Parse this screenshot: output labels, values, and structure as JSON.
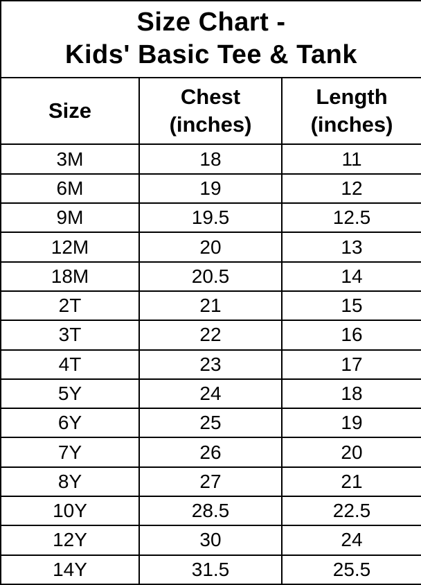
{
  "title": {
    "line1": "Size Chart -",
    "line2": "Kids' Basic Tee & Tank"
  },
  "colors": {
    "border": "#000000",
    "background": "#ffffff",
    "text": "#000000"
  },
  "chart_data": {
    "type": "table",
    "title": "Size Chart - Kids' Basic Tee & Tank",
    "columns": [
      "Size",
      "Chest (inches)",
      "Length (inches)"
    ],
    "column_headers": [
      {
        "label": "Size",
        "sub": ""
      },
      {
        "label": "Chest",
        "sub": "(inches)"
      },
      {
        "label": "Length",
        "sub": "(inches)"
      }
    ],
    "rows": [
      {
        "size": "3M",
        "chest": "18",
        "length": "11"
      },
      {
        "size": "6M",
        "chest": "19",
        "length": "12"
      },
      {
        "size": "9M",
        "chest": "19.5",
        "length": "12.5"
      },
      {
        "size": "12M",
        "chest": "20",
        "length": "13"
      },
      {
        "size": "18M",
        "chest": "20.5",
        "length": "14"
      },
      {
        "size": "2T",
        "chest": "21",
        "length": "15"
      },
      {
        "size": "3T",
        "chest": "22",
        "length": "16"
      },
      {
        "size": "4T",
        "chest": "23",
        "length": "17"
      },
      {
        "size": "5Y",
        "chest": "24",
        "length": "18"
      },
      {
        "size": "6Y",
        "chest": "25",
        "length": "19"
      },
      {
        "size": "7Y",
        "chest": "26",
        "length": "20"
      },
      {
        "size": "8Y",
        "chest": "27",
        "length": "21"
      },
      {
        "size": "10Y",
        "chest": "28.5",
        "length": "22.5"
      },
      {
        "size": "12Y",
        "chest": "30",
        "length": "24"
      },
      {
        "size": "14Y",
        "chest": "31.5",
        "length": "25.5"
      }
    ]
  }
}
